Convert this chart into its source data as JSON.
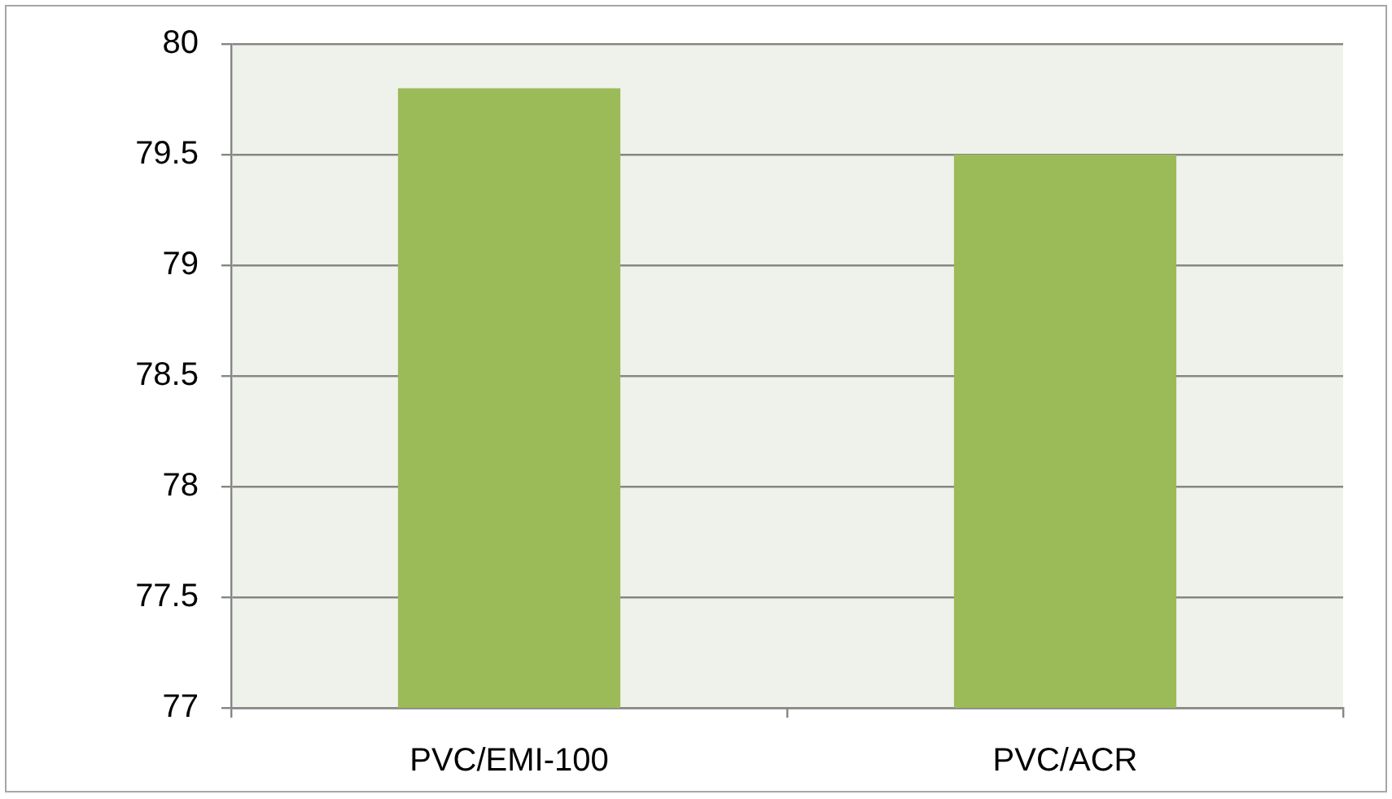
{
  "chart_data": {
    "type": "bar",
    "categories": [
      "PVC/EMI-100",
      "PVC/ACR"
    ],
    "values": [
      79.8,
      79.5
    ],
    "color": "#9bbb59",
    "ylim": [
      77,
      80
    ],
    "yticks": [
      77,
      77.5,
      78,
      78.5,
      79,
      79.5,
      80
    ],
    "grid": "y"
  }
}
